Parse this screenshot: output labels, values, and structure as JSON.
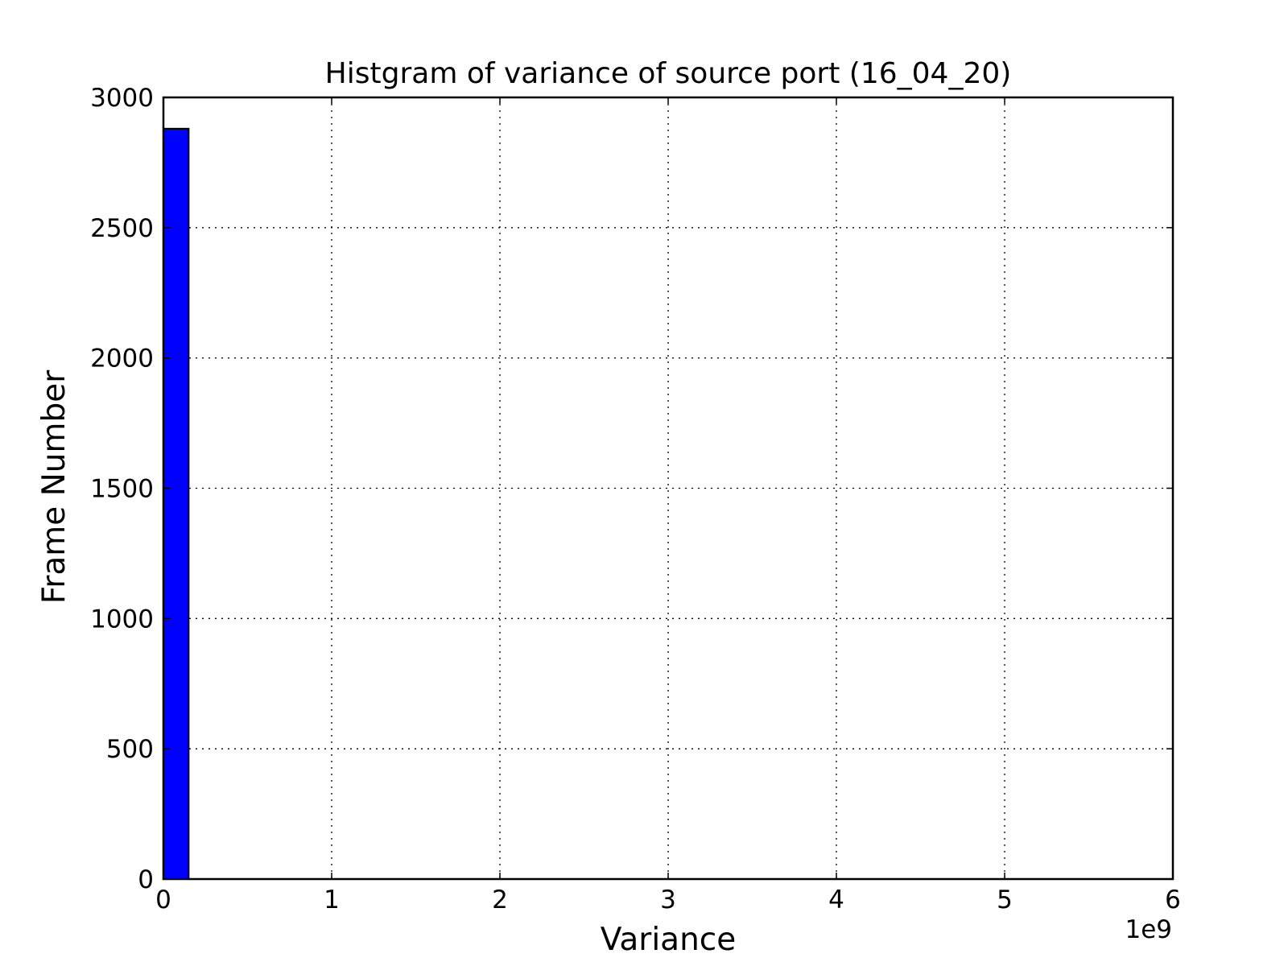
{
  "chart_data": {
    "type": "bar",
    "title": "Histgram of variance of source port (16_04_20)",
    "xlabel": "Variance",
    "ylabel": "Frame Number",
    "x_offset_label": "1e9",
    "xlim": [
      0,
      6
    ],
    "ylim": [
      0,
      3000
    ],
    "x_ticks": [
      0,
      1,
      2,
      3,
      4,
      5,
      6
    ],
    "x_tick_labels": [
      "0",
      "1",
      "2",
      "3",
      "4",
      "5",
      "6"
    ],
    "y_ticks": [
      0,
      500,
      1000,
      1500,
      2000,
      2500,
      3000
    ],
    "y_tick_labels": [
      "0",
      "500",
      "1000",
      "1500",
      "2000",
      "2500",
      "3000"
    ],
    "grid": true,
    "grid_style": "dotted",
    "bins": [
      {
        "x0": 0,
        "x1": 0.15,
        "count": 2880
      }
    ],
    "colors": {
      "bar_fill": "#0000ff",
      "bar_edge": "#000000",
      "axes": "#000000",
      "grid": "#000000"
    }
  }
}
